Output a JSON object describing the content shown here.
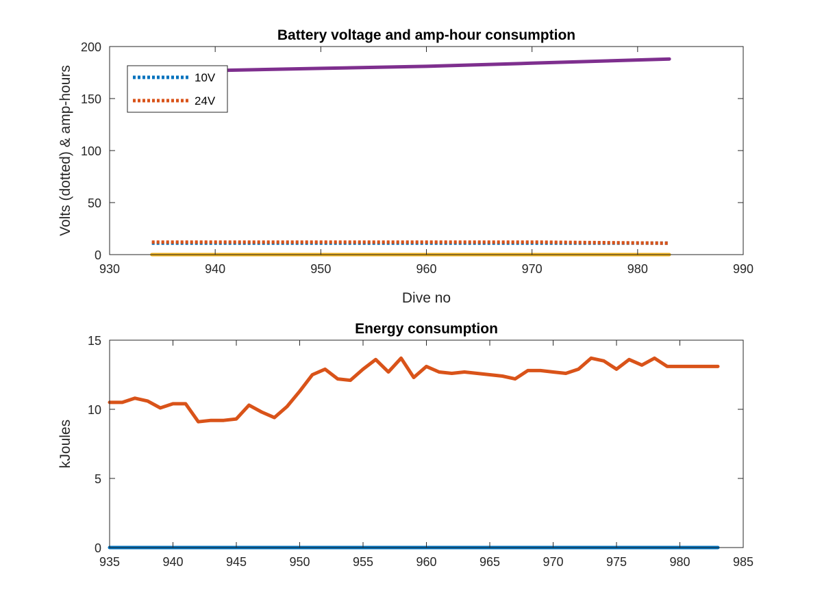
{
  "chart_data": [
    {
      "type": "line",
      "title": "Battery voltage and amp-hour consumption",
      "xlabel": "Dive no",
      "ylabel": "Volts (dotted) & amp-hours",
      "xlim": [
        930,
        990
      ],
      "ylim": [
        0,
        200
      ],
      "xticks": [
        930,
        940,
        950,
        960,
        970,
        980,
        990
      ],
      "yticks": [
        0,
        50,
        100,
        150,
        200
      ],
      "legend_position": "top-left",
      "series": [
        {
          "name": "10V",
          "style": "dotted",
          "color": "#0072BD",
          "x": [
            934,
            983
          ],
          "y": [
            11,
            11
          ],
          "in_legend": true
        },
        {
          "name": "24V",
          "style": "dotted",
          "color": "#D95319",
          "x": [
            934,
            940,
            950,
            956,
            962,
            971,
            983
          ],
          "y": [
            12,
            12,
            12,
            12,
            12,
            12,
            11
          ],
          "in_legend": true
        },
        {
          "style": "solid",
          "color": "#EDB120",
          "x": [
            934,
            983
          ],
          "y": [
            0,
            0
          ],
          "in_legend": false
        },
        {
          "style": "solid",
          "color": "#7E2F8E",
          "x": [
            934,
            940,
            950,
            960,
            970,
            983
          ],
          "y": [
            175,
            177,
            179,
            181,
            184,
            188
          ],
          "in_legend": false
        }
      ]
    },
    {
      "type": "line",
      "title": "Energy consumption",
      "xlabel": "",
      "ylabel": "kJoules",
      "xlim": [
        935,
        985
      ],
      "ylim": [
        0,
        15
      ],
      "xticks": [
        935,
        940,
        945,
        950,
        955,
        960,
        965,
        970,
        975,
        980,
        985
      ],
      "yticks": [
        0,
        5,
        10,
        15
      ],
      "series": [
        {
          "style": "solid",
          "color": "#D95319",
          "x": [
            935,
            936,
            937,
            938,
            939,
            940,
            941,
            942,
            943,
            944,
            945,
            946,
            947,
            948,
            949,
            950,
            951,
            952,
            953,
            954,
            955,
            956,
            957,
            958,
            959,
            960,
            961,
            962,
            963,
            964,
            965,
            966,
            967,
            968,
            969,
            970,
            971,
            972,
            973,
            974,
            975,
            976,
            977,
            978,
            979,
            980,
            981,
            982,
            983
          ],
          "y": [
            10.5,
            10.5,
            10.8,
            10.6,
            10.1,
            10.4,
            10.4,
            9.1,
            9.2,
            9.2,
            9.3,
            10.3,
            9.8,
            9.4,
            10.2,
            11.3,
            12.5,
            12.9,
            12.2,
            12.1,
            12.9,
            13.6,
            12.7,
            13.7,
            12.3,
            13.1,
            12.7,
            12.6,
            12.7,
            12.6,
            12.5,
            12.4,
            12.2,
            12.8,
            12.8,
            12.7,
            12.6,
            12.9,
            13.7,
            13.5,
            12.9,
            13.6,
            13.2,
            13.7,
            13.1,
            13.1,
            13.1,
            13.1,
            13.1
          ]
        },
        {
          "style": "solid",
          "color": "#0072BD",
          "x": [
            935,
            983
          ],
          "y": [
            0,
            0
          ]
        }
      ]
    }
  ]
}
